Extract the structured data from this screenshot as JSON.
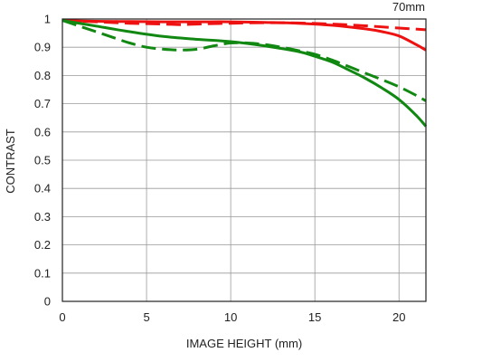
{
  "chart_data": {
    "type": "line",
    "title": "",
    "corner_label": "70mm",
    "xlabel": "IMAGE HEIGHT (mm)",
    "ylabel": "CONTRAST",
    "xlim": [
      0,
      21.6
    ],
    "ylim": [
      0,
      1
    ],
    "xticks": [
      0,
      5,
      10,
      15,
      20
    ],
    "yticks": [
      0,
      0.1,
      0.2,
      0.3,
      0.4,
      0.5,
      0.6,
      0.7,
      0.8,
      0.9,
      1
    ],
    "grid": true,
    "legend": "none",
    "series": [
      {
        "color": "#ee1111",
        "dash": "solid",
        "x": [
          0,
          2,
          4,
          6,
          8,
          10,
          12,
          14,
          16,
          18,
          19,
          20,
          21,
          21.6
        ],
        "y": [
          0.995,
          0.992,
          0.991,
          0.99,
          0.99,
          0.99,
          0.988,
          0.985,
          0.978,
          0.965,
          0.955,
          0.94,
          0.91,
          0.89
        ]
      },
      {
        "color": "#ee1111",
        "dash": "dashed",
        "x": [
          0,
          2,
          4,
          6,
          7,
          8,
          10,
          12,
          14,
          16,
          18,
          20,
          21.6
        ],
        "y": [
          0.995,
          0.99,
          0.985,
          0.982,
          0.98,
          0.982,
          0.985,
          0.987,
          0.986,
          0.982,
          0.976,
          0.968,
          0.962
        ]
      },
      {
        "color": "#118811",
        "dash": "solid",
        "x": [
          0,
          2,
          4,
          6,
          8,
          10,
          12,
          14,
          15,
          16,
          17,
          18,
          19,
          20,
          21,
          21.6
        ],
        "y": [
          0.995,
          0.975,
          0.955,
          0.938,
          0.928,
          0.92,
          0.905,
          0.885,
          0.868,
          0.848,
          0.82,
          0.79,
          0.755,
          0.715,
          0.66,
          0.62
        ]
      },
      {
        "color": "#118811",
        "dash": "dashed",
        "x": [
          0,
          1,
          2,
          3,
          4,
          5,
          6,
          7,
          8,
          9,
          10,
          11,
          12,
          13,
          14,
          15,
          16,
          17,
          18,
          19,
          20,
          21,
          21.6
        ],
        "y": [
          0.995,
          0.975,
          0.955,
          0.935,
          0.915,
          0.9,
          0.893,
          0.89,
          0.893,
          0.905,
          0.915,
          0.915,
          0.91,
          0.9,
          0.888,
          0.875,
          0.855,
          0.832,
          0.808,
          0.785,
          0.76,
          0.73,
          0.71
        ]
      }
    ]
  }
}
